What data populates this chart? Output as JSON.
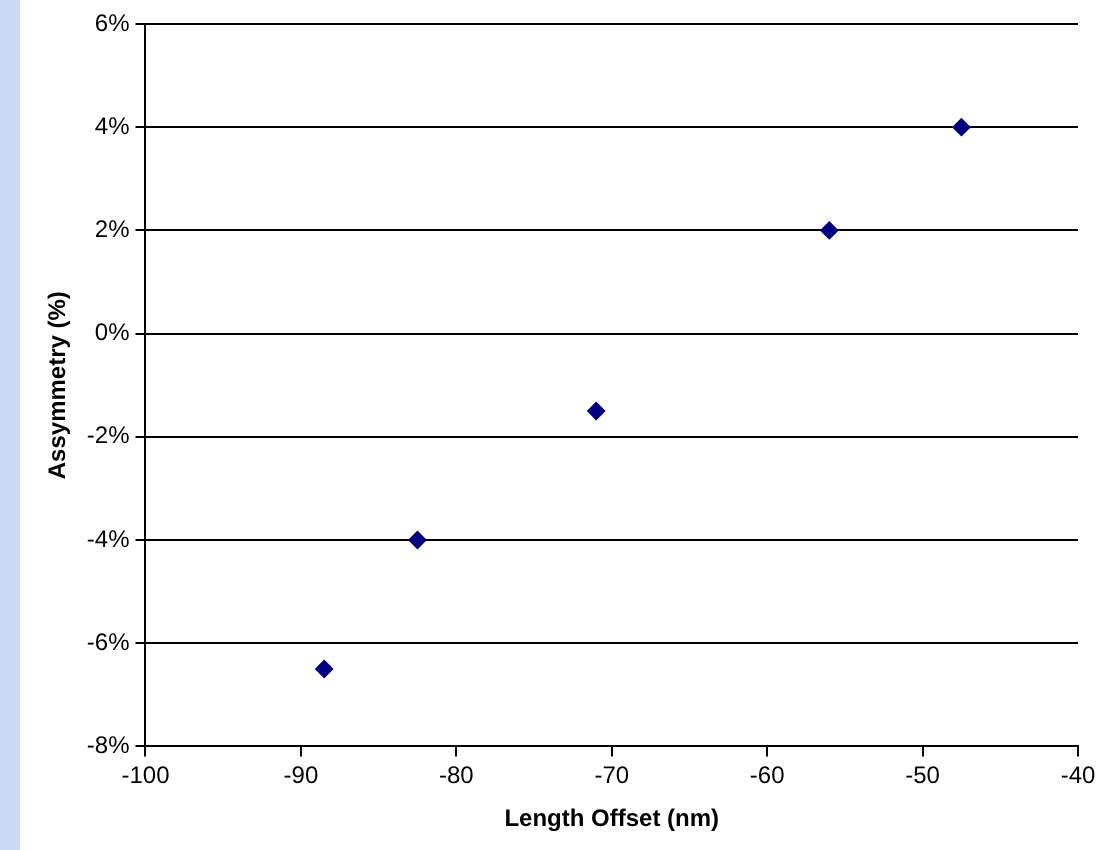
{
  "chart_data": {
    "type": "scatter",
    "xlabel": "Length Offset (nm)",
    "ylabel": "Assymmetry (%)",
    "x": [
      -88.5,
      -82.5,
      -71,
      -56,
      -47.5
    ],
    "series": [
      {
        "color": "#000080",
        "values": [
          -6.5,
          -4,
          -1.5,
          2,
          4
        ]
      }
    ],
    "xlim": [
      -100,
      -40
    ],
    "xticks": [
      -100,
      -90,
      -80,
      -70,
      -60,
      -50,
      -40
    ],
    "ylim": [
      -8,
      6
    ],
    "yticks": [
      {
        "value": -8,
        "label": "-8%"
      },
      {
        "value": -6,
        "label": "-6%"
      },
      {
        "value": -4,
        "label": "-4%"
      },
      {
        "value": -2,
        "label": "-2%"
      },
      {
        "value": 0,
        "label": "0%"
      },
      {
        "value": 2,
        "label": "2%"
      },
      {
        "value": 4,
        "label": "4%"
      },
      {
        "value": 6,
        "label": "6%"
      }
    ],
    "grid": "y",
    "legend": false,
    "marker": "diamond"
  }
}
